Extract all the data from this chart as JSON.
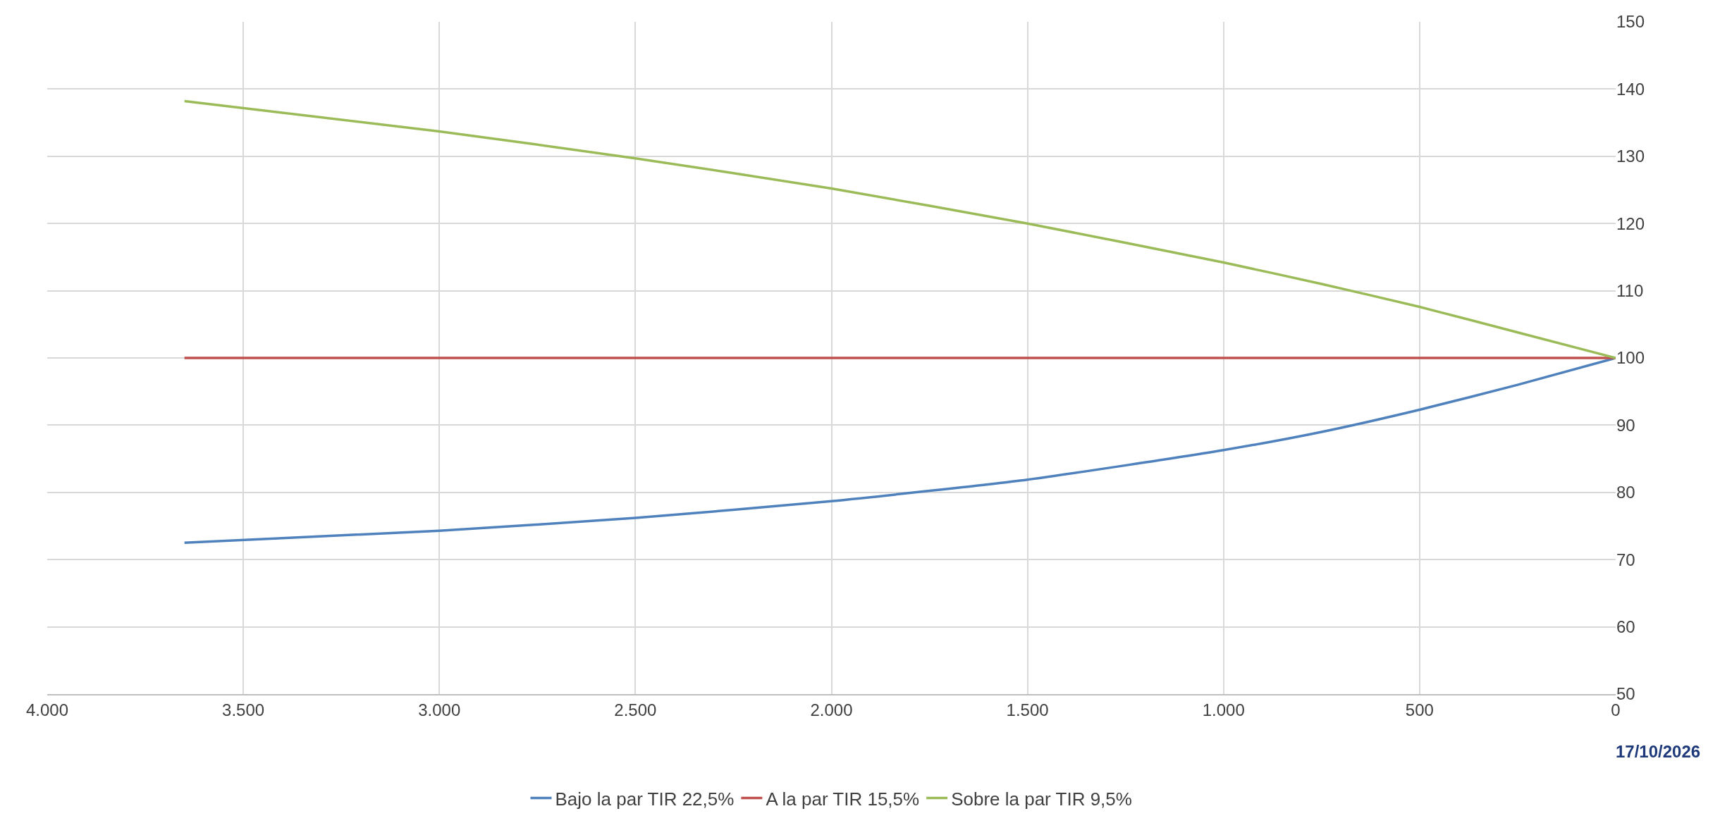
{
  "chart_data": {
    "type": "line",
    "x": [
      3650,
      3000,
      2500,
      2000,
      1500,
      1000,
      750,
      500,
      250,
      0
    ],
    "series": [
      {
        "name": "Bajo la par TIR 22,5%",
        "color": "#4f81bd",
        "values": [
          72.5,
          74.3,
          76.2,
          78.7,
          81.9,
          86.3,
          89,
          92.3,
          96,
          100
        ]
      },
      {
        "name": "A la par TIR 15,5%",
        "color": "#c0504d",
        "values": [
          100,
          100,
          100,
          100,
          100,
          100,
          100,
          100,
          100,
          100
        ]
      },
      {
        "name": "Sobre la par TIR 9,5%",
        "color": "#9bbb59",
        "values": [
          138.2,
          133.7,
          129.7,
          125.2,
          120,
          114.2,
          111,
          107.6,
          103.8,
          100
        ]
      }
    ],
    "xlim": [
      4000,
      0
    ],
    "xticks": [
      {
        "value": 4000,
        "label": "4.000"
      },
      {
        "value": 3500,
        "label": "3.500"
      },
      {
        "value": 3000,
        "label": "3.000"
      },
      {
        "value": 2500,
        "label": "2.500"
      },
      {
        "value": 2000,
        "label": "2.000"
      },
      {
        "value": 1500,
        "label": "1.500"
      },
      {
        "value": 1000,
        "label": "1.000"
      },
      500,
      0
    ],
    "ylim": [
      50,
      150
    ],
    "yticks": [
      50,
      60,
      70,
      80,
      90,
      100,
      110,
      120,
      130,
      140,
      150
    ],
    "grid": true,
    "legend": "bottom",
    "marker": "none",
    "line_style": "solid",
    "annotations": [
      "17/10/2026"
    ]
  }
}
